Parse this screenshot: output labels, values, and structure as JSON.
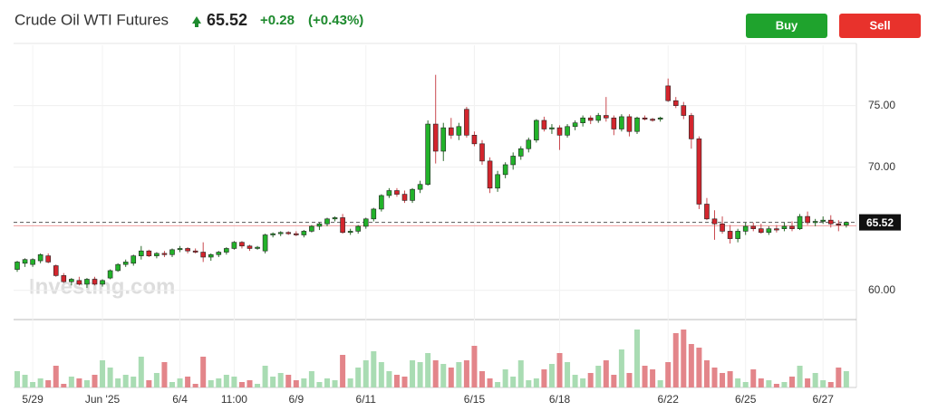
{
  "chart_data": {
    "type": "candlestick",
    "title": "Crude Oil WTI Futures",
    "last_price": 65.52,
    "change": "+0.28",
    "change_pct": "(+0.43%)",
    "buttons": [
      "Buy",
      "Sell"
    ],
    "watermark": "Investing.com",
    "previous_close": 65.24,
    "colors": {
      "up": "#22b22a",
      "down": "#d3252d",
      "up_volume": "#a9dcb3",
      "down_volume": "#e3858a"
    },
    "ylim": [
      57.7,
      79.9
    ],
    "yticks": [
      {
        "value": 60,
        "label": "60.00"
      },
      {
        "value": 70,
        "label": "70.00"
      },
      {
        "value": 75,
        "label": "75.00"
      }
    ],
    "vlim": [
      0,
      70
    ],
    "grid": true,
    "categories": [
      null,
      null,
      "5/29",
      null,
      null,
      null,
      null,
      null,
      null,
      null,
      null,
      "Jun '25",
      null,
      null,
      null,
      null,
      null,
      null,
      null,
      null,
      null,
      "6/4",
      null,
      null,
      null,
      null,
      null,
      null,
      "11:00",
      null,
      null,
      null,
      null,
      null,
      null,
      null,
      "6/9",
      null,
      null,
      null,
      null,
      null,
      null,
      null,
      null,
      "6/11",
      null,
      null,
      null,
      null,
      null,
      null,
      null,
      null,
      null,
      null,
      null,
      null,
      null,
      "6/15",
      null,
      null,
      null,
      null,
      null,
      null,
      null,
      null,
      null,
      null,
      "6/18",
      null,
      null,
      null,
      null,
      null,
      null,
      null,
      null,
      null,
      null,
      null,
      null,
      null,
      "6/22",
      null,
      null,
      null,
      null,
      null,
      null,
      null,
      null,
      null,
      "6/25",
      null,
      null,
      null,
      null,
      null,
      null,
      null,
      null,
      null,
      "6/27",
      null,
      null,
      null
    ],
    "candles": [
      [
        61.7,
        62.4,
        61.5,
        62.3
      ],
      [
        62.2,
        62.6,
        61.9,
        62.5
      ],
      [
        62.1,
        62.6,
        61.9,
        62.5
      ],
      [
        62.4,
        63.0,
        62.2,
        62.9
      ],
      [
        62.8,
        63.0,
        62.2,
        62.3
      ],
      [
        62.0,
        62.1,
        61.1,
        61.2
      ],
      [
        61.2,
        61.4,
        60.6,
        60.7
      ],
      [
        60.7,
        61.0,
        60.4,
        60.9
      ],
      [
        60.8,
        61.1,
        60.4,
        60.5
      ],
      [
        60.5,
        61.0,
        60.2,
        60.9
      ],
      [
        60.9,
        61.1,
        60.4,
        60.5
      ],
      [
        60.5,
        60.9,
        60.3,
        60.8
      ],
      [
        61.0,
        61.7,
        60.9,
        61.6
      ],
      [
        61.6,
        62.2,
        61.5,
        62.1
      ],
      [
        62.1,
        62.5,
        61.9,
        62.3
      ],
      [
        62.2,
        62.9,
        62.0,
        62.8
      ],
      [
        62.8,
        63.6,
        62.5,
        63.2
      ],
      [
        63.2,
        63.3,
        62.7,
        62.8
      ],
      [
        62.8,
        63.1,
        62.6,
        63.0
      ],
      [
        63.0,
        63.2,
        62.7,
        62.9
      ],
      [
        62.9,
        63.4,
        62.7,
        63.3
      ],
      [
        63.3,
        63.6,
        63.1,
        63.4
      ],
      [
        63.4,
        63.5,
        63.0,
        63.2
      ],
      [
        63.2,
        63.4,
        63.0,
        63.1
      ],
      [
        63.1,
        63.9,
        62.3,
        62.7
      ],
      [
        62.7,
        63.0,
        62.4,
        62.9
      ],
      [
        62.9,
        63.2,
        62.7,
        63.1
      ],
      [
        63.1,
        63.5,
        62.9,
        63.4
      ],
      [
        63.4,
        64.0,
        63.3,
        63.9
      ],
      [
        63.9,
        64.0,
        63.4,
        63.6
      ],
      [
        63.6,
        63.7,
        63.2,
        63.4
      ],
      [
        63.4,
        63.6,
        63.3,
        63.5
      ],
      [
        63.2,
        64.6,
        63.0,
        64.5
      ],
      [
        64.5,
        64.7,
        64.3,
        64.6
      ],
      [
        64.6,
        64.8,
        64.4,
        64.7
      ],
      [
        64.7,
        64.8,
        64.5,
        64.6
      ],
      [
        64.6,
        64.8,
        64.4,
        64.5
      ],
      [
        64.5,
        64.9,
        64.3,
        64.8
      ],
      [
        64.8,
        65.3,
        64.7,
        65.2
      ],
      [
        65.2,
        65.5,
        64.9,
        65.4
      ],
      [
        65.4,
        65.9,
        65.2,
        65.8
      ],
      [
        65.8,
        66.0,
        65.6,
        65.9
      ],
      [
        65.9,
        66.2,
        64.6,
        64.7
      ],
      [
        64.7,
        65.0,
        64.5,
        64.8
      ],
      [
        64.8,
        65.3,
        64.6,
        65.2
      ],
      [
        65.2,
        65.9,
        65.0,
        65.8
      ],
      [
        65.8,
        66.7,
        65.6,
        66.6
      ],
      [
        66.6,
        67.8,
        66.4,
        67.7
      ],
      [
        67.7,
        68.3,
        67.5,
        68.1
      ],
      [
        68.1,
        68.3,
        67.6,
        67.8
      ],
      [
        67.8,
        68.1,
        67.1,
        67.3
      ],
      [
        67.3,
        68.3,
        67.1,
        68.2
      ],
      [
        68.2,
        68.9,
        67.9,
        68.6
      ],
      [
        68.6,
        73.8,
        68.5,
        73.5
      ],
      [
        73.5,
        77.5,
        70.3,
        71.3
      ],
      [
        71.3,
        73.6,
        70.5,
        73.2
      ],
      [
        73.2,
        74.0,
        72.3,
        72.6
      ],
      [
        72.6,
        73.6,
        72.2,
        73.3
      ],
      [
        74.7,
        74.9,
        72.4,
        72.6
      ],
      [
        72.6,
        72.9,
        71.7,
        71.9
      ],
      [
        71.9,
        72.2,
        70.2,
        70.5
      ],
      [
        70.5,
        70.8,
        67.9,
        68.3
      ],
      [
        68.3,
        69.7,
        68.0,
        69.4
      ],
      [
        69.4,
        70.4,
        69.1,
        70.2
      ],
      [
        70.2,
        71.2,
        69.8,
        70.9
      ],
      [
        70.9,
        71.7,
        70.6,
        71.5
      ],
      [
        71.5,
        72.4,
        71.2,
        72.2
      ],
      [
        72.2,
        73.9,
        72.0,
        73.8
      ],
      [
        73.8,
        74.1,
        72.9,
        73.1
      ],
      [
        73.1,
        73.5,
        72.7,
        73.2
      ],
      [
        73.2,
        73.4,
        71.4,
        72.6
      ],
      [
        72.6,
        73.5,
        72.4,
        73.3
      ],
      [
        73.3,
        73.8,
        73.0,
        73.6
      ],
      [
        73.6,
        74.2,
        73.3,
        74.0
      ],
      [
        74.0,
        74.2,
        73.5,
        73.8
      ],
      [
        73.8,
        74.4,
        73.6,
        74.2
      ],
      [
        74.2,
        75.7,
        73.7,
        74.0
      ],
      [
        74.0,
        74.2,
        72.6,
        73.1
      ],
      [
        73.1,
        74.3,
        72.9,
        74.1
      ],
      [
        74.1,
        74.3,
        72.5,
        72.9
      ],
      [
        72.9,
        74.1,
        72.7,
        74.0
      ],
      [
        74.0,
        74.2,
        73.8,
        73.9
      ],
      [
        73.9,
        74.0,
        73.7,
        73.8
      ],
      [
        73.9,
        74.1,
        73.7,
        74.0
      ],
      [
        76.6,
        77.2,
        75.3,
        75.4
      ],
      [
        75.4,
        75.7,
        74.8,
        75.0
      ],
      [
        75.0,
        75.3,
        73.9,
        74.2
      ],
      [
        74.2,
        74.4,
        71.5,
        72.3
      ],
      [
        72.3,
        72.5,
        66.6,
        67.0
      ],
      [
        67.0,
        67.5,
        65.7,
        65.8
      ],
      [
        65.8,
        66.5,
        64.1,
        65.4
      ],
      [
        65.4,
        66.0,
        64.6,
        64.8
      ],
      [
        64.8,
        65.3,
        63.8,
        64.2
      ],
      [
        64.2,
        65.0,
        63.9,
        64.8
      ],
      [
        64.8,
        65.5,
        64.5,
        65.2
      ],
      [
        65.2,
        65.5,
        64.8,
        65.0
      ],
      [
        65.0,
        65.4,
        64.6,
        64.7
      ],
      [
        64.7,
        65.2,
        64.5,
        65.0
      ],
      [
        65.0,
        65.3,
        64.7,
        64.9
      ],
      [
        65.0,
        65.5,
        64.8,
        65.2
      ],
      [
        65.2,
        65.6,
        64.8,
        65.0
      ],
      [
        65.0,
        66.2,
        64.9,
        66.0
      ],
      [
        66.0,
        66.4,
        65.3,
        65.5
      ],
      [
        65.5,
        65.8,
        65.2,
        65.6
      ],
      [
        65.6,
        66.0,
        65.4,
        65.7
      ],
      [
        65.7,
        66.1,
        65.1,
        65.4
      ],
      [
        65.4,
        65.7,
        64.8,
        65.3
      ],
      [
        65.3,
        65.6,
        65.1,
        65.52
      ]
    ],
    "volumes": [
      18,
      14,
      6,
      10,
      8,
      24,
      4,
      12,
      10,
      8,
      14,
      30,
      22,
      10,
      14,
      12,
      34,
      8,
      16,
      28,
      6,
      10,
      12,
      4,
      34,
      8,
      10,
      14,
      12,
      6,
      8,
      4,
      24,
      12,
      16,
      14,
      8,
      10,
      18,
      6,
      10,
      8,
      36,
      10,
      22,
      30,
      40,
      28,
      18,
      14,
      12,
      30,
      28,
      38,
      30,
      26,
      22,
      28,
      30,
      46,
      18,
      10,
      6,
      20,
      12,
      30,
      8,
      10,
      20,
      26,
      38,
      28,
      14,
      10,
      16,
      24,
      30,
      14,
      42,
      16,
      64,
      24,
      20,
      8,
      28,
      60,
      64,
      48,
      44,
      30,
      22,
      16,
      18,
      10,
      6,
      20,
      10,
      8,
      4,
      6,
      12,
      24,
      10,
      16,
      8,
      6,
      22,
      18
    ]
  }
}
